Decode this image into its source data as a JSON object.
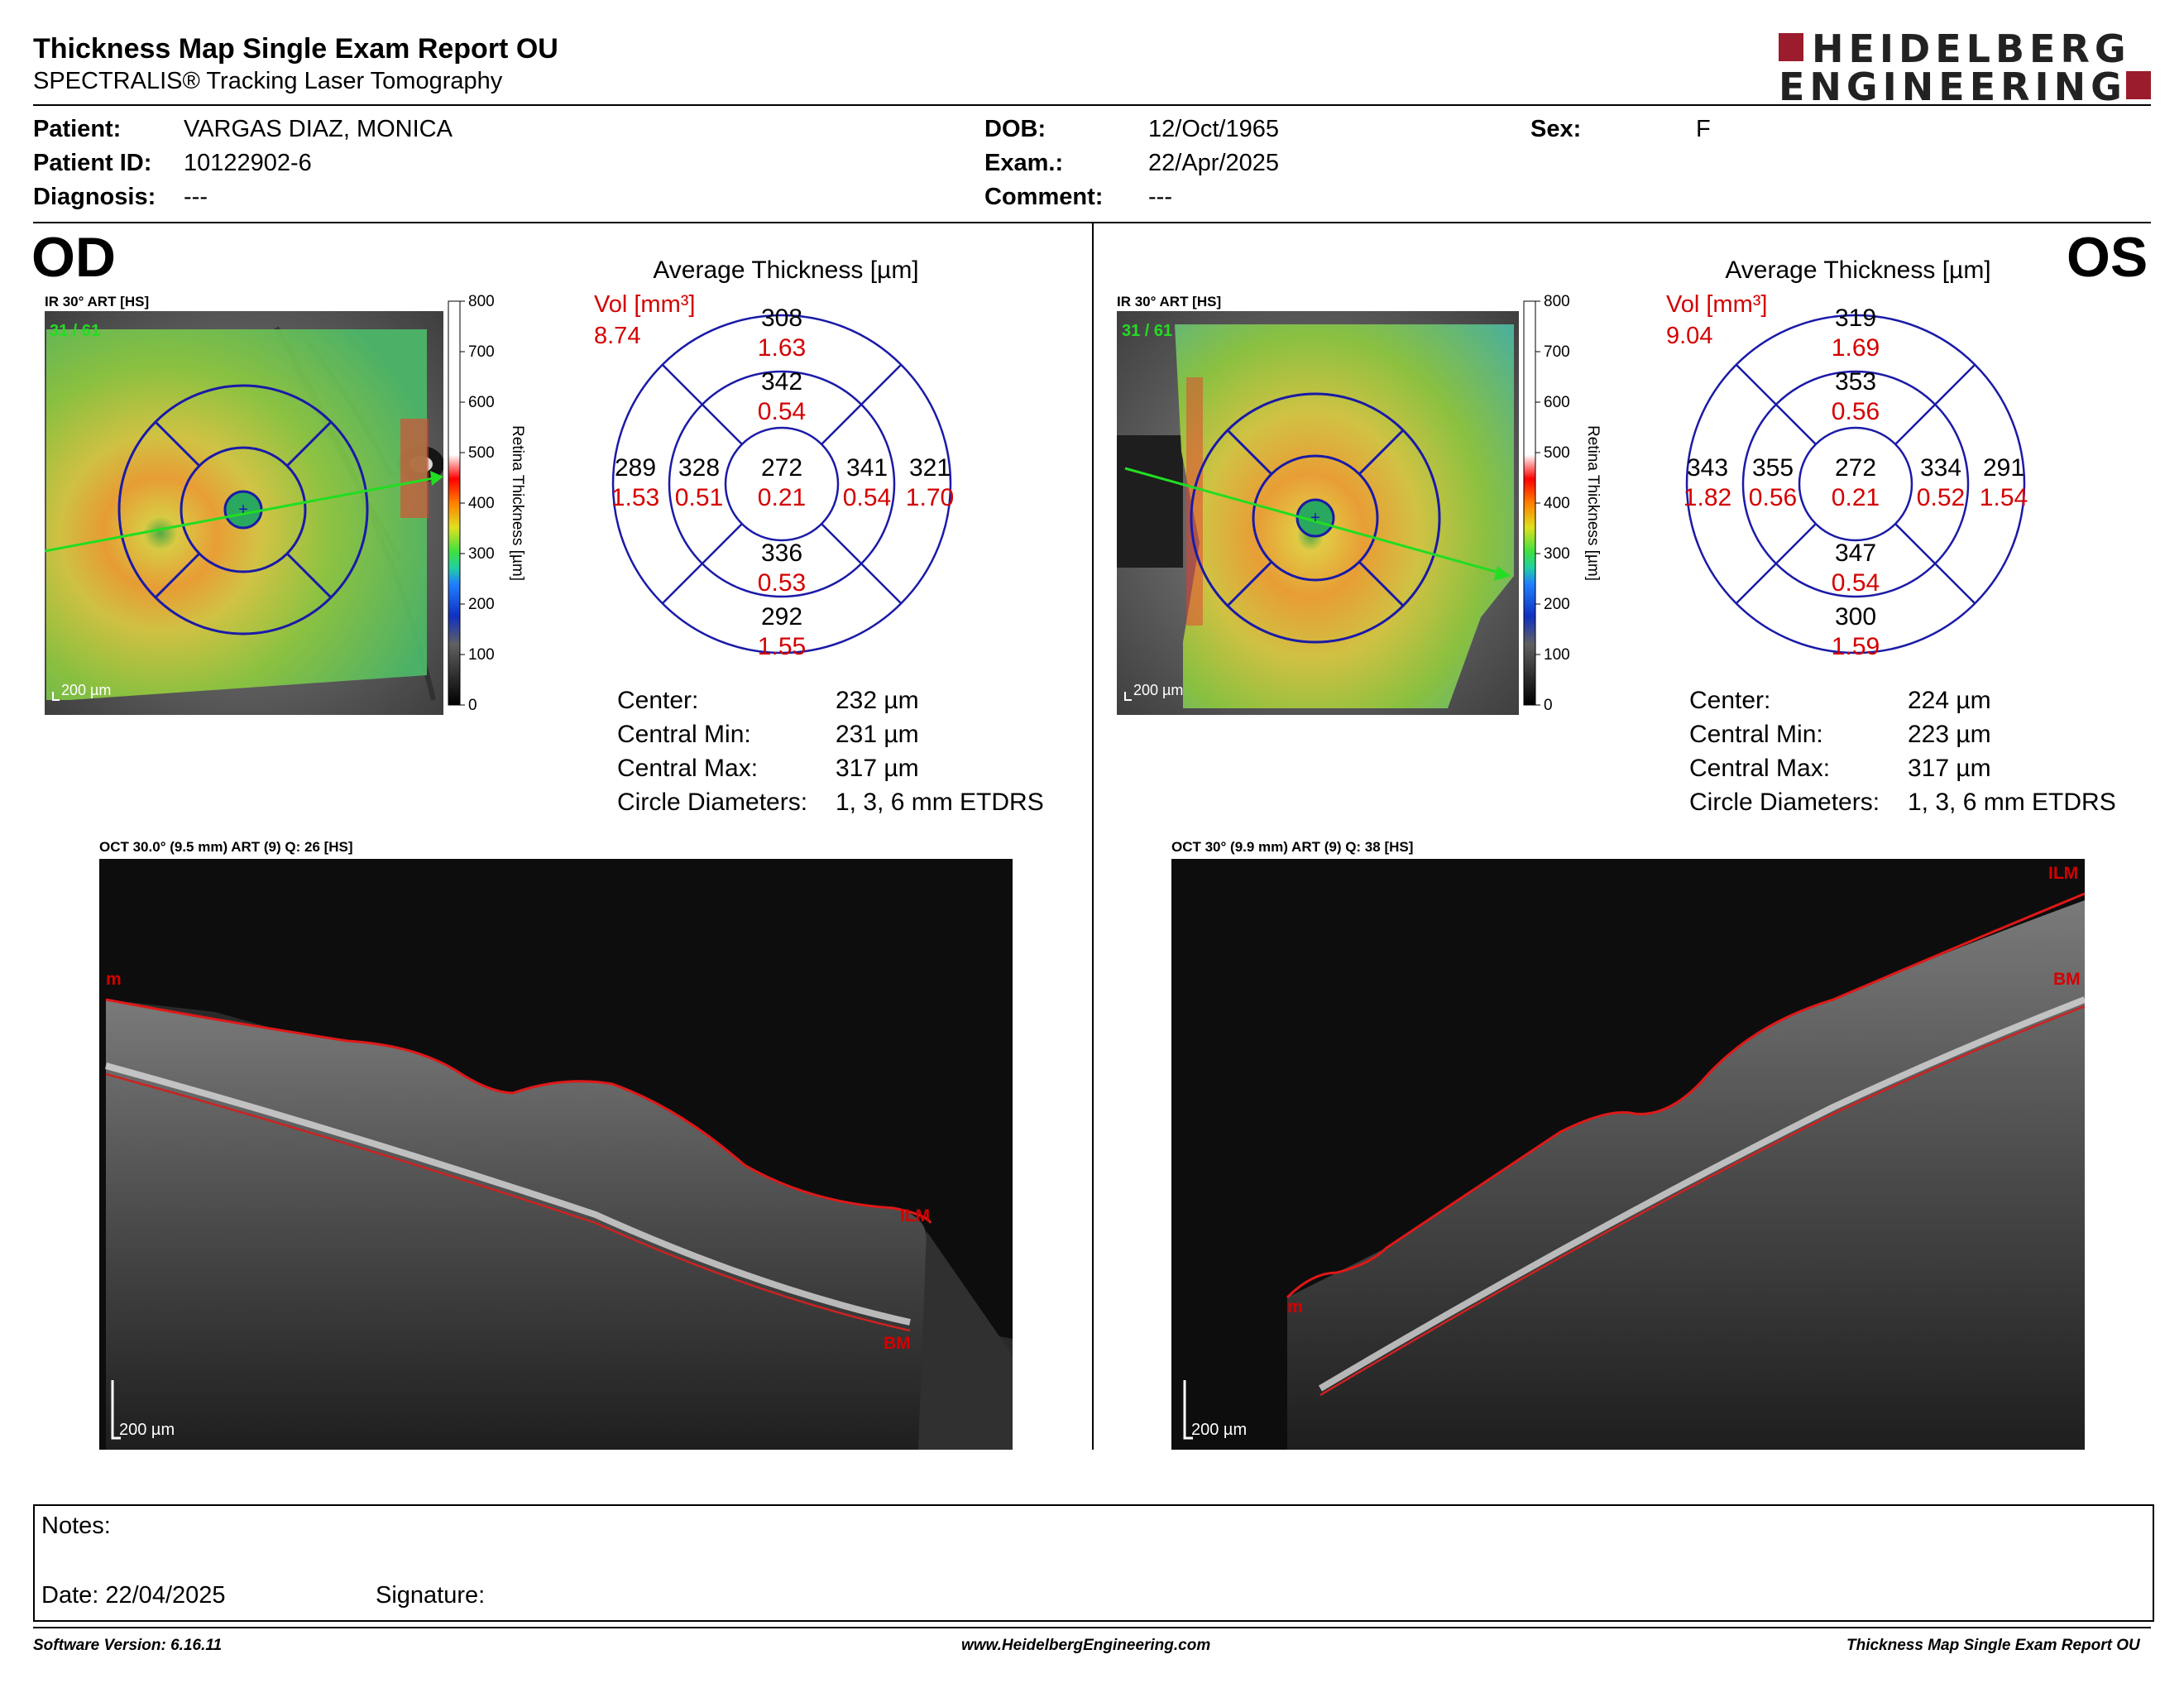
{
  "header": {
    "title": "Thickness Map Single Exam Report OU",
    "subtitle": "SPECTRALIS® Tracking Laser Tomography",
    "logo_line1": "HEIDELBERG",
    "logo_line2": "ENGINEERING"
  },
  "patient": {
    "patient_label": "Patient:",
    "patient_value": "VARGAS DIAZ, MONICA",
    "id_label": "Patient ID:",
    "id_value": "10122902-6",
    "diagnosis_label": "Diagnosis:",
    "diagnosis_value": "---",
    "dob_label": "DOB:",
    "dob_value": "12/Oct/1965",
    "exam_label": "Exam.:",
    "exam_value": "22/Apr/2025",
    "comment_label": "Comment:",
    "comment_value": "---",
    "sex_label": "Sex:",
    "sex_value": "F"
  },
  "od": {
    "eye": "OD",
    "ir_caption": "IR 30° ART [HS]",
    "frame_count": "31 / 61",
    "scale_label": "200 µm",
    "colorbar_ticks": [
      "800",
      "700",
      "600",
      "500",
      "400",
      "300",
      "200",
      "100",
      "0"
    ],
    "colorbar_label": "Retina Thickness [µm]",
    "avg_title": "Average Thickness [µm]",
    "vol_label": "Vol [mm³]",
    "vol_value": "8.74",
    "etdrs": {
      "center": {
        "t": "272",
        "v": "0.21"
      },
      "inner_sup": {
        "t": "342",
        "v": "0.54"
      },
      "inner_inf": {
        "t": "336",
        "v": "0.53"
      },
      "inner_left": {
        "t": "328",
        "v": "0.51"
      },
      "inner_right": {
        "t": "341",
        "v": "0.54"
      },
      "outer_sup": {
        "t": "308",
        "v": "1.63"
      },
      "outer_inf": {
        "t": "292",
        "v": "1.55"
      },
      "outer_left": {
        "t": "289",
        "v": "1.53"
      },
      "outer_right": {
        "t": "321",
        "v": "1.70"
      }
    },
    "stats": [
      {
        "label": "Center:",
        "value": "232 µm"
      },
      {
        "label": "Central Min:",
        "value": "231 µm"
      },
      {
        "label": "Central Max:",
        "value": "317 µm"
      },
      {
        "label": "Circle Diameters:",
        "value": "1, 3, 6 mm ETDRS"
      }
    ],
    "oct_caption": "OCT 30.0° (9.5 mm) ART (9) Q: 26 [HS]",
    "oct_scale": "200 µm",
    "oct_labels": {
      "m": "m",
      "ilm": "ILM",
      "bm": "BM"
    }
  },
  "os": {
    "eye": "OS",
    "ir_caption": "IR 30° ART [HS]",
    "frame_count": "31 / 61",
    "scale_label": "200 µm",
    "colorbar_ticks": [
      "800",
      "700",
      "600",
      "500",
      "400",
      "300",
      "200",
      "100",
      "0"
    ],
    "colorbar_label": "Retina Thickness [µm]",
    "avg_title": "Average Thickness [µm]",
    "vol_label": "Vol [mm³]",
    "vol_value": "9.04",
    "etdrs": {
      "center": {
        "t": "272",
        "v": "0.21"
      },
      "inner_sup": {
        "t": "353",
        "v": "0.56"
      },
      "inner_inf": {
        "t": "347",
        "v": "0.54"
      },
      "inner_left": {
        "t": "355",
        "v": "0.56"
      },
      "inner_right": {
        "t": "334",
        "v": "0.52"
      },
      "outer_sup": {
        "t": "319",
        "v": "1.69"
      },
      "outer_inf": {
        "t": "300",
        "v": "1.59"
      },
      "outer_left": {
        "t": "343",
        "v": "1.82"
      },
      "outer_right": {
        "t": "291",
        "v": "1.54"
      }
    },
    "stats": [
      {
        "label": "Center:",
        "value": "224 µm"
      },
      {
        "label": "Central Min:",
        "value": "223 µm"
      },
      {
        "label": "Central Max:",
        "value": "317 µm"
      },
      {
        "label": "Circle Diameters:",
        "value": "1, 3, 6 mm ETDRS"
      }
    ],
    "oct_caption": "OCT 30° (9.9 mm) ART (9) Q: 38 [HS]",
    "oct_scale": "200 µm",
    "oct_labels": {
      "m": "m",
      "ilm": "ILM",
      "bm": "BM"
    }
  },
  "notes": {
    "notes_label": "Notes:",
    "date_label": "Date: 22/04/2025",
    "signature_label": "Signature:"
  },
  "footer": {
    "software": "Software Version: 6.16.11",
    "website": "www.HeidelbergEngineering.com",
    "report_name": "Thickness Map Single Exam Report OU"
  },
  "colors": {
    "accent_red": "#d40000",
    "grid_blue": "#1a1aa8",
    "logo_red": "#9b1c2c",
    "scan_green": "#22dd22"
  }
}
